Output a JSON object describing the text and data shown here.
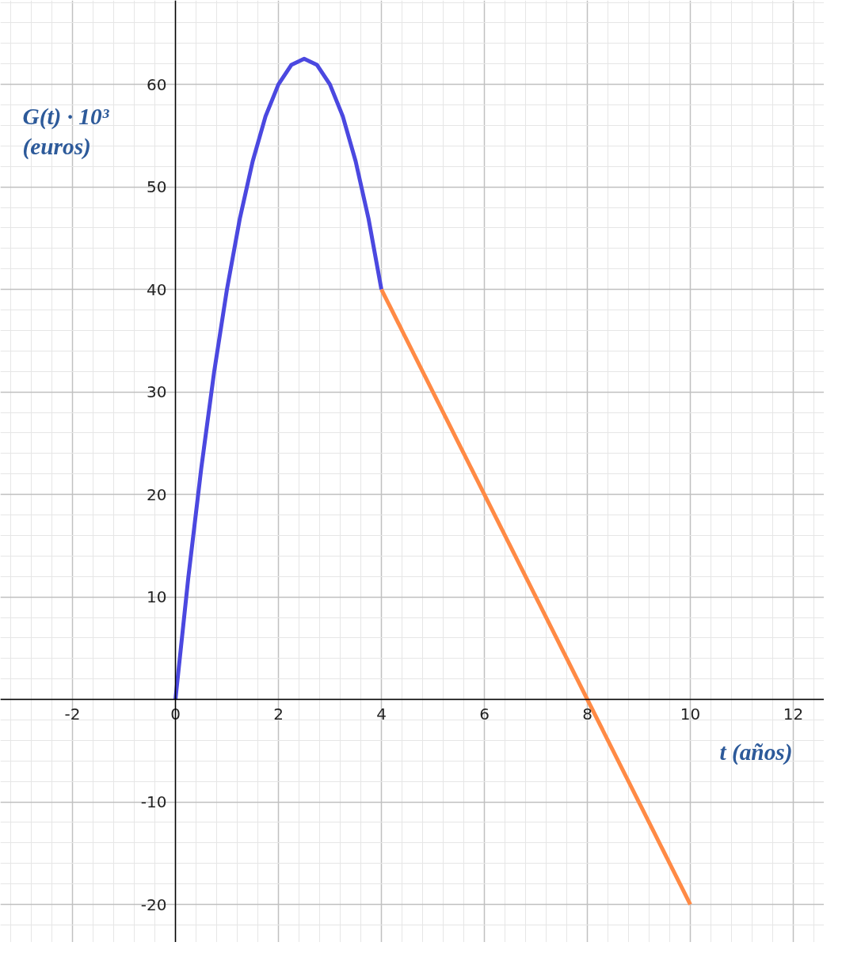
{
  "chart_data": {
    "type": "line",
    "xlabel": "t (años)",
    "ylabel": "G(t) · 10³\n(euros)",
    "series": [
      {
        "color": "#4b48e0",
        "x": [
          0,
          0.25,
          0.5,
          0.75,
          1,
          1.25,
          1.5,
          1.75,
          2,
          2.25,
          2.5,
          2.75,
          3,
          3.25,
          3.5,
          3.75,
          4
        ],
        "values": [
          0,
          11.9,
          22.5,
          31.9,
          40,
          46.9,
          52.5,
          56.9,
          60,
          61.9,
          62.5,
          61.9,
          60,
          56.9,
          52.5,
          46.9,
          40
        ]
      },
      {
        "color": "#ff8a45",
        "x": [
          4,
          10
        ],
        "values": [
          40,
          -20
        ]
      }
    ],
    "xlim": [
      -3.4,
      12.6
    ],
    "ylim": [
      -23.7,
      68.2
    ],
    "xticks": [
      -2,
      0,
      2,
      4,
      6,
      8,
      10,
      12
    ],
    "yticks": [
      -20,
      -10,
      {
        "value": 0,
        "label": null
      },
      10,
      20,
      30,
      40,
      50,
      60
    ],
    "grid": true,
    "line_style": "solid"
  }
}
